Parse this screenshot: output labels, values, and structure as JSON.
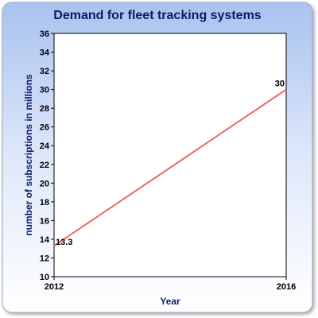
{
  "chart_data": {
    "type": "line",
    "title": "Demand for fleet tracking systems",
    "xlabel": "Year",
    "ylabel": "number of subscriptions in millions",
    "categories": [
      "2012",
      "2016"
    ],
    "series": [
      {
        "values": [
          13.3,
          30
        ],
        "data_labels": [
          "13.3",
          "30"
        ]
      }
    ],
    "ylim": [
      10,
      36
    ],
    "yticks": [
      "10",
      "12",
      "14",
      "16",
      "18",
      "20",
      "22",
      "24",
      "26",
      "28",
      "30",
      "32",
      "34",
      "36"
    ],
    "grid": false,
    "legend": "none"
  },
  "colors": {
    "line": "#ee6666",
    "title_band": "#b8cdf2",
    "plot_bg": "#ffffff",
    "title_text": "#0b1a6b"
  }
}
